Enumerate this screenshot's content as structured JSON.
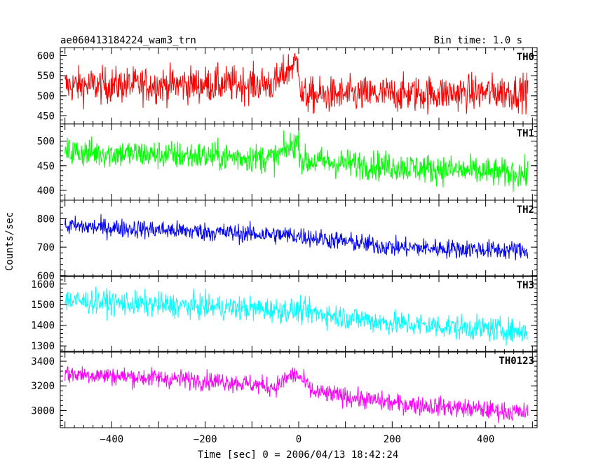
{
  "chart_data": {
    "type": "line",
    "title": "ae060413184224_wam3_trn",
    "subtitle": "Bin time: 1.0 s",
    "xlabel": "Time [sec] 0 = 2006/04/13 18:42:24",
    "ylabel": "Counts/sec",
    "xlim": [
      -510,
      510
    ],
    "xticks": [
      -400,
      -200,
      0,
      200,
      400
    ],
    "grid": false,
    "panels": [
      {
        "name": "TH0",
        "color": "#ff0000",
        "ylim": [
          430,
          620
        ],
        "yticks": [
          450,
          500,
          550,
          600
        ],
        "profile": [
          [
            -500,
            525
          ],
          [
            -50,
            530
          ],
          [
            -15,
            575
          ],
          [
            0,
            585
          ],
          [
            5,
            500
          ],
          [
            490,
            510
          ]
        ],
        "noise": 38
      },
      {
        "name": "TH1",
        "color": "#00ff00",
        "ylim": [
          380,
          535
        ],
        "yticks": [
          400,
          450,
          500
        ],
        "profile": [
          [
            -500,
            478
          ],
          [
            -50,
            465
          ],
          [
            -10,
            495
          ],
          [
            0,
            500
          ],
          [
            5,
            460
          ],
          [
            490,
            432
          ]
        ],
        "noise": 25
      },
      {
        "name": "TH2",
        "color": "#0000ff",
        "ylim": [
          597,
          865
        ],
        "yticks": [
          600,
          700,
          800
        ],
        "profile": [
          [
            -500,
            775
          ],
          [
            0,
            740
          ],
          [
            200,
            700
          ],
          [
            490,
            688
          ]
        ],
        "noise": 28
      },
      {
        "name": "TH3",
        "color": "#00ffff",
        "ylim": [
          1270,
          1640
        ],
        "yticks": [
          1300,
          1400,
          1500,
          1600
        ],
        "profile": [
          [
            -500,
            1520
          ],
          [
            0,
            1470
          ],
          [
            200,
            1410
          ],
          [
            490,
            1370
          ]
        ],
        "noise": 50
      },
      {
        "name": "TH0123",
        "color": "#ff00ff",
        "ylim": [
          2860,
          3480
        ],
        "yticks": [
          3000,
          3200,
          3400
        ],
        "profile": [
          [
            -500,
            3300
          ],
          [
            -150,
            3235
          ],
          [
            -50,
            3190
          ],
          [
            -15,
            3290
          ],
          [
            0,
            3280
          ],
          [
            30,
            3150
          ],
          [
            200,
            3060
          ],
          [
            490,
            2980
          ]
        ],
        "noise": 65
      }
    ]
  }
}
